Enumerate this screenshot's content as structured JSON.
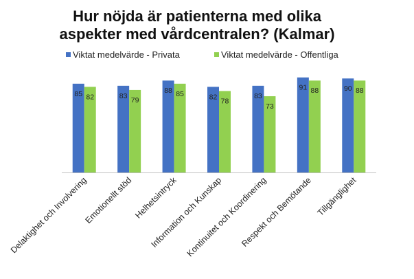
{
  "chart_data": {
    "type": "bar",
    "title": "Hur nöjda är patienterna med olika aspekter med vårdcentralen? (Kalmar)",
    "title_lines": [
      "Hur nöjda är patienterna med olika",
      "aspekter med vårdcentralen? (Kalmar)"
    ],
    "categories": [
      "Delaktighet och Involvering",
      "Emotionellt stöd",
      "Helhetsintryck",
      "Information och Kunskap",
      "Kontinuitet och Koordinering",
      "Respekt och Bemötande",
      "Tillgänglighet"
    ],
    "series": [
      {
        "name": "Viktat medelvärde - Privata",
        "color": "#4472C4",
        "values": [
          85,
          83,
          88,
          82,
          83,
          91,
          90
        ]
      },
      {
        "name": "Viktat medelvärde - Offentliga",
        "color": "#92D050",
        "values": [
          82,
          79,
          85,
          78,
          73,
          88,
          88
        ]
      }
    ],
    "ylim": [
      0,
      100
    ],
    "legend_position": "top",
    "grid": false,
    "data_labels": true
  }
}
